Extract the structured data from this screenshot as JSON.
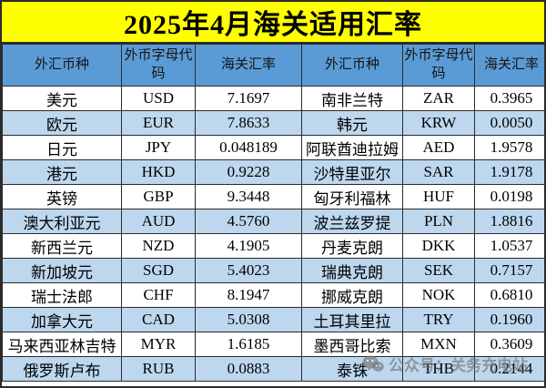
{
  "title": "2025年4月海关适用汇率",
  "chart_data": {
    "type": "table",
    "title": "2025年4月海关适用汇率",
    "columns": [
      "外汇币种",
      "外币字母代码",
      "海关汇率",
      "外汇币种",
      "外币字母代码",
      "海关汇率"
    ],
    "rows": [
      [
        "美元",
        "USD",
        "7.1697",
        "南非兰特",
        "ZAR",
        "0.3965"
      ],
      [
        "欧元",
        "EUR",
        "7.8633",
        "韩元",
        "KRW",
        "0.0050"
      ],
      [
        "日元",
        "JPY",
        "0.048189",
        "阿联酋迪拉姆",
        "AED",
        "1.9578"
      ],
      [
        "港元",
        "HKD",
        "0.9228",
        "沙特里亚尔",
        "SAR",
        "1.9178"
      ],
      [
        "英镑",
        "GBP",
        "9.3448",
        "匈牙利福林",
        "HUF",
        "0.0198"
      ],
      [
        "澳大利亚元",
        "AUD",
        "4.5760",
        "波兰兹罗提",
        "PLN",
        "1.8816"
      ],
      [
        "新西兰元",
        "NZD",
        "4.1905",
        "丹麦克朗",
        "DKK",
        "1.0537"
      ],
      [
        "新加坡元",
        "SGD",
        "5.4023",
        "瑞典克朗",
        "SEK",
        "0.7157"
      ],
      [
        "瑞士法郎",
        "CHF",
        "8.1947",
        "挪威克朗",
        "NOK",
        "0.6810"
      ],
      [
        "加拿大元",
        "CAD",
        "5.0308",
        "土耳其里拉",
        "TRY",
        "0.1960"
      ],
      [
        "马来西亚林吉特",
        "MYR",
        "1.6185",
        "墨西哥比索",
        "MXN",
        "0.3609"
      ],
      [
        "俄罗斯卢布",
        "RUB",
        "0.0883",
        "泰铢",
        "THB",
        "0.2144"
      ]
    ]
  },
  "watermark": {
    "icon": "wechat-icon",
    "text": "公众号：关务充电站"
  },
  "colors": {
    "title_bg": "#FFFF00",
    "title_text": "#000000",
    "header_bg": "#5B9BD5",
    "row_alt_bg": "#BDD7EE",
    "row_bg": "#FFFFFF",
    "border": "#2B2B2B",
    "watermark_gray": "#737373"
  }
}
